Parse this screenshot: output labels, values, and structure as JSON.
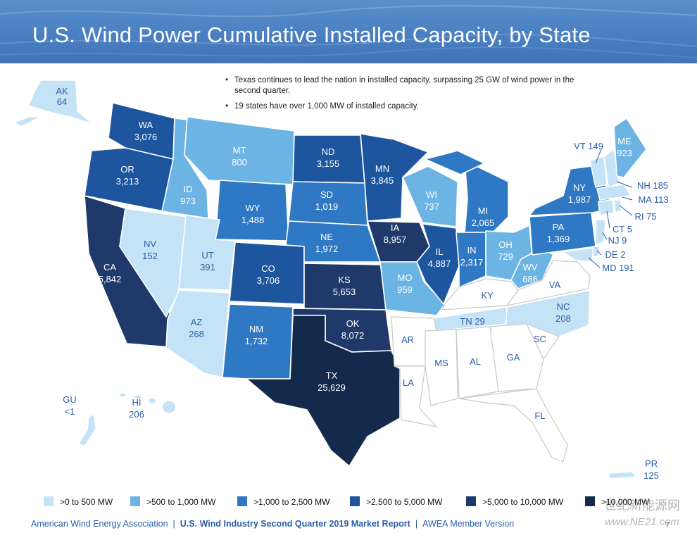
{
  "header": {
    "title": "U.S. Wind Power Cumulative Installed Capacity, by State"
  },
  "bullets": [
    "Texas continues to lead the nation in installed capacity, surpassing 25 GW of wind power in the second quarter.",
    "19 states have over 1,000 MW of installed capacity."
  ],
  "colors": {
    "tier1": "#c5e3f6",
    "tier2": "#6cb4e4",
    "tier3": "#2f78c4",
    "tier4": "#1d569f",
    "tier5": "#1f3a6a",
    "tier6": "#132a4d",
    "blank": "#ffffff",
    "border": "#c9c9c9"
  },
  "legend": [
    {
      "label": ">0 to 500 MW",
      "color": "#c5e3f6"
    },
    {
      "label": ">500 to 1,000 MW",
      "color": "#6cb4e4"
    },
    {
      "label": ">1,000 to 2,500 MW",
      "color": "#2f78c4"
    },
    {
      "label": ">2,500 to 5,000 MW",
      "color": "#1d569f"
    },
    {
      "label": ">5,000 to 10,000 MW",
      "color": "#1f3a6a"
    },
    {
      "label": ">10,000 MW",
      "color": "#132a4d"
    }
  ],
  "states": {
    "AK": {
      "abbr": "AK",
      "value": "64",
      "tier": 1
    },
    "WA": {
      "abbr": "WA",
      "value": "3,076",
      "tier": 4
    },
    "OR": {
      "abbr": "OR",
      "value": "3,213",
      "tier": 4
    },
    "CA": {
      "abbr": "CA",
      "value": "5,842",
      "tier": 5
    },
    "ID": {
      "abbr": "ID",
      "value": "973",
      "tier": 2
    },
    "NV": {
      "abbr": "NV",
      "value": "152",
      "tier": 1
    },
    "MT": {
      "abbr": "MT",
      "value": "800",
      "tier": 2
    },
    "WY": {
      "abbr": "WY",
      "value": "1,488",
      "tier": 3
    },
    "UT": {
      "abbr": "UT",
      "value": "391",
      "tier": 1
    },
    "AZ": {
      "abbr": "AZ",
      "value": "268",
      "tier": 1
    },
    "CO": {
      "abbr": "CO",
      "value": "3,706",
      "tier": 4
    },
    "NM": {
      "abbr": "NM",
      "value": "1,732",
      "tier": 3
    },
    "ND": {
      "abbr": "ND",
      "value": "3,155",
      "tier": 4
    },
    "SD": {
      "abbr": "SD",
      "value": "1,019",
      "tier": 3
    },
    "NE": {
      "abbr": "NE",
      "value": "1,972",
      "tier": 3
    },
    "KS": {
      "abbr": "KS",
      "value": "5,653",
      "tier": 5
    },
    "OK": {
      "abbr": "OK",
      "value": "8,072",
      "tier": 5
    },
    "TX": {
      "abbr": "TX",
      "value": "25,629",
      "tier": 6
    },
    "MN": {
      "abbr": "MN",
      "value": "3,845",
      "tier": 4
    },
    "IA": {
      "abbr": "IA",
      "value": "8,957",
      "tier": 5
    },
    "MO": {
      "abbr": "MO",
      "value": "959",
      "tier": 2
    },
    "WI": {
      "abbr": "WI",
      "value": "737",
      "tier": 2
    },
    "IL": {
      "abbr": "IL",
      "value": "4,887",
      "tier": 4
    },
    "MI": {
      "abbr": "MI",
      "value": "2,065",
      "tier": 3
    },
    "IN": {
      "abbr": "IN",
      "value": "2,317",
      "tier": 3
    },
    "OH": {
      "abbr": "OH",
      "value": "729",
      "tier": 2
    },
    "WV": {
      "abbr": "WV",
      "value": "686",
      "tier": 2
    },
    "PA": {
      "abbr": "PA",
      "value": "1,369",
      "tier": 3
    },
    "NY": {
      "abbr": "NY",
      "value": "1,987",
      "tier": 3
    },
    "ME": {
      "abbr": "ME",
      "value": "923",
      "tier": 2
    },
    "NC": {
      "abbr": "NC",
      "value": "208",
      "tier": 1
    },
    "TN": {
      "abbr": "TN",
      "value": "29",
      "tier": 1
    },
    "HI": {
      "abbr": "HI",
      "value": "206",
      "tier": 1
    },
    "GU": {
      "abbr": "GU",
      "value": "<1",
      "tier": 1
    },
    "PR": {
      "abbr": "PR",
      "value": "125",
      "tier": 1
    }
  },
  "side_labels": {
    "VT": "VT 149",
    "NH": "NH 185",
    "MA": "MA 113",
    "RI": "RI 75",
    "CT": "CT 5",
    "NJ": "NJ 9",
    "DE": "DE 2",
    "MD": "MD 191",
    "TN": "TN 29"
  },
  "unlabeled_states": [
    "KY",
    "VA",
    "AR",
    "MS",
    "AL",
    "GA",
    "SC",
    "LA",
    "FL"
  ],
  "footer": {
    "org": "American Wind Energy Association",
    "report": "U.S. Wind Industry Second Quarter 2019 Market Report",
    "version": "AWEA Member Version",
    "page": "7"
  },
  "watermark": {
    "line1": "世纪新能源网",
    "line2": "www.NE21.com"
  }
}
